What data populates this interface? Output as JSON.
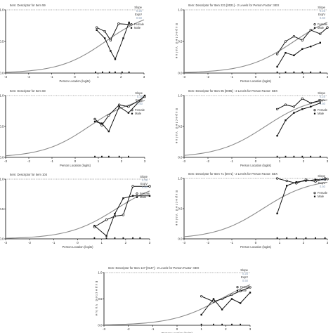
{
  "chart_data": [
    {
      "type": "line",
      "title": "Item: Descriptor for Item 59",
      "xlabel": "Person Location (logits)",
      "ylabel": "",
      "xlim": [
        -3,
        3
      ],
      "ylim": [
        0,
        1
      ],
      "yticks": [
        "0.0",
        "0.5",
        "1.0"
      ],
      "xticks": [
        "-3",
        "-2",
        "-1",
        "0",
        "1",
        "2",
        "3"
      ],
      "stats": {
        "slope_label": "Slope",
        "slope": "0.25",
        "expv_label": "ExpV",
        "expv": "0.50"
      },
      "legend": [
        "Female",
        "Male"
      ],
      "curve": {
        "location": 1.33,
        "scale": 1.0
      },
      "series": [
        {
          "name": "Female",
          "x": [
            0.95,
            1.3,
            1.55,
            1.9,
            2.35
          ],
          "y": [
            0.72,
            0.66,
            0.52,
            0.78,
            0.77
          ]
        },
        {
          "name": "Male",
          "x": [
            0.95,
            1.3,
            1.55,
            1.75,
            2.1,
            2.35
          ],
          "y": [
            0.68,
            0.55,
            0.35,
            0.22,
            0.55,
            0.8
          ]
        }
      ],
      "rug": [
        0.9,
        1.2,
        1.5,
        1.75,
        2.05,
        2.35
      ]
    },
    {
      "type": "line",
      "title": "Item: Descriptor for Item 221 [0021] - 2 Levels for Person Factor: SEX",
      "xlabel": "Person Location (logits)",
      "ylabel": "Expected Value",
      "xlim": [
        -3,
        3
      ],
      "ylim": [
        0,
        1
      ],
      "yticks": [
        "0.0",
        "0.5",
        "1.0"
      ],
      "xticks": [
        "-3",
        "-2",
        "-1",
        "0",
        "1",
        "2",
        "3"
      ],
      "stats": {
        "slope_label": "Slope",
        "slope": "0.25",
        "expv_label": "ExpV",
        "expv": "0.50"
      },
      "legend": [
        "Female",
        "Male"
      ],
      "curve": {
        "location": 1.6,
        "scale": 1.0
      },
      "series": [
        {
          "name": "Female",
          "x": [
            0.9,
            1.25,
            1.6,
            1.95,
            2.3,
            2.7,
            3.0
          ],
          "y": [
            0.3,
            0.5,
            0.58,
            0.52,
            0.68,
            0.62,
            0.72
          ]
        },
        {
          "name": "Male",
          "x": [
            0.9,
            1.25,
            1.6,
            1.95,
            2.3,
            2.7
          ],
          "y": [
            0.1,
            0.32,
            0.28,
            0.38,
            0.42,
            0.48
          ]
        }
      ],
      "rug": [
        0.9,
        1.25,
        1.6,
        1.95,
        2.3,
        2.7
      ]
    },
    {
      "type": "line",
      "title": "Item: Descriptor for Item 83",
      "xlabel": "Person Location (logits)",
      "ylabel": "",
      "xlim": [
        -3,
        3
      ],
      "ylim": [
        0,
        1
      ],
      "yticks": [
        "0.0",
        "0.5",
        "1.0"
      ],
      "xticks": [
        "-3",
        "-2",
        "-1",
        "0",
        "1",
        "2",
        "3"
      ],
      "stats": {
        "slope_label": "Slope",
        "slope": "0.25",
        "expv_label": "ExpV",
        "expv": "0.50"
      },
      "legend": [
        "Female",
        "Male"
      ],
      "curve": {
        "location": 0.6,
        "scale": 1.0
      },
      "series": [
        {
          "name": "Female",
          "x": [
            0.85,
            1.15,
            1.45,
            1.9,
            2.3,
            3.0
          ],
          "y": [
            0.62,
            0.52,
            0.68,
            0.85,
            0.82,
            0.98
          ]
        },
        {
          "name": "Male",
          "x": [
            0.85,
            1.15,
            1.45,
            1.9,
            2.3,
            3.0
          ],
          "y": [
            0.58,
            0.55,
            0.42,
            0.82,
            0.72,
            1.0
          ]
        }
      ],
      "rug": [
        0.85,
        1.15,
        1.45,
        1.9,
        2.3
      ]
    },
    {
      "type": "line",
      "title": "Item: Descriptor for Item 95 [0095] - 2 Levels for Person Factor: SEX",
      "xlabel": "Person Location (logits)",
      "ylabel": "Expected Value",
      "xlim": [
        -3,
        3
      ],
      "ylim": [
        0,
        1
      ],
      "yticks": [
        "0.0",
        "0.5",
        "1.0"
      ],
      "xticks": [
        "-3",
        "-2",
        "-1",
        "0",
        "1",
        "2",
        "3"
      ],
      "stats": {
        "slope_label": "Slope",
        "slope": "0.25",
        "expv_label": "ExpV",
        "expv": "0.50"
      },
      "legend": [
        "Female",
        "Male"
      ],
      "curve": {
        "location": 0.4,
        "scale": 1.0
      },
      "series": [
        {
          "name": "Female",
          "x": [
            0.9,
            1.25,
            1.6,
            1.95,
            2.3,
            2.7
          ],
          "y": [
            0.78,
            0.85,
            0.82,
            0.95,
            0.88,
            0.92
          ]
        },
        {
          "name": "Male",
          "x": [
            0.9,
            1.25,
            1.6,
            1.95,
            2.3,
            2.7
          ],
          "y": [
            0.35,
            0.6,
            0.72,
            0.78,
            0.82,
            0.88
          ]
        }
      ],
      "rug": [
        0.9,
        1.25,
        1.6,
        1.95,
        2.3,
        2.7
      ]
    },
    {
      "type": "line",
      "title": "Item: Descriptor for Item 104",
      "xlabel": "Person Location (logits)",
      "ylabel": "",
      "xlim": [
        -3,
        3
      ],
      "ylim": [
        0,
        1
      ],
      "yticks": [
        "0.0",
        "0.5",
        "1.0"
      ],
      "xticks": [
        "-3",
        "-2",
        "-1",
        "0",
        "1",
        "2",
        "3"
      ],
      "stats": {
        "slope_label": "Slope",
        "slope": "0.25",
        "expv_label": "ExpV",
        "expv": "0.50"
      },
      "legend": [
        "Female",
        "Male"
      ],
      "curve": {
        "location": 1.6,
        "scale": 1.0
      },
      "series": [
        {
          "name": "Female",
          "x": [
            0.7,
            1.2,
            1.55,
            1.9,
            2.3,
            3.0
          ],
          "y": [
            0.2,
            0.32,
            0.38,
            0.4,
            0.88,
            0.88
          ]
        },
        {
          "name": "Male",
          "x": [
            0.7,
            1.2,
            1.55,
            1.9,
            2.3,
            3.0
          ],
          "y": [
            0.22,
            0.05,
            0.42,
            0.68,
            0.72,
            0.72
          ]
        }
      ],
      "rug": [
        0.7,
        1.2,
        1.55,
        1.9,
        2.3,
        2.6
      ]
    },
    {
      "type": "line",
      "title": "Item: Descriptor for Item 71 [0071] - 2 Levels for Person Factor: SEX",
      "xlabel": "Person Location (logits)",
      "ylabel": "Expected Value",
      "xlim": [
        -3,
        3
      ],
      "ylim": [
        0,
        1
      ],
      "yticks": [
        "0.0",
        "0.5",
        "1.0"
      ],
      "xticks": [
        "-3",
        "-2",
        "-1",
        "0",
        "1",
        "2",
        "3"
      ],
      "stats": {
        "slope_label": "Slope",
        "slope": "0.25",
        "expv_label": "ExpV",
        "expv": "0.50"
      },
      "legend": [
        "Female",
        "Male"
      ],
      "curve": {
        "location": 0.3,
        "scale": 1.0
      },
      "series": [
        {
          "name": "Female",
          "x": [
            0.9,
            1.3,
            1.7,
            2.1,
            2.5,
            2.9,
            3.0
          ],
          "y": [
            1.0,
            0.96,
            0.92,
            0.98,
            0.95,
            1.0,
            0.99
          ]
        },
        {
          "name": "Male",
          "x": [
            0.9,
            1.3,
            1.7,
            2.1,
            2.5,
            2.9
          ],
          "y": [
            0.42,
            0.88,
            0.94,
            0.96,
            0.98,
            0.98
          ]
        }
      ],
      "rug": [
        0.9,
        1.3,
        1.7,
        2.1,
        2.5,
        2.9
      ]
    },
    {
      "type": "line",
      "title": "Item: Descriptor for Item 147 [0147] - 2 Levels for Person Factor: SEX",
      "xlabel": "Person Location (logits)",
      "ylabel": "Expected Value",
      "xlim": [
        -3,
        3
      ],
      "ylim": [
        0,
        1
      ],
      "yticks": [
        "0.0",
        "0.5",
        "1.0"
      ],
      "xticks": [
        "-3",
        "-2",
        "-1",
        "0",
        "1",
        "2",
        "3"
      ],
      "stats": {
        "slope_label": "Slope",
        "slope": "0.25",
        "expv_label": "ExpV",
        "expv": "0.50"
      },
      "legend": [
        "Female",
        "Male"
      ],
      "curve": {
        "location": 1.8,
        "scale": 1.0
      },
      "series": [
        {
          "name": "Female",
          "x": [
            1.0,
            1.5,
            1.85,
            2.25,
            2.6,
            3.0
          ],
          "y": [
            0.55,
            0.45,
            0.5,
            0.58,
            0.65,
            0.72
          ]
        },
        {
          "name": "Male",
          "x": [
            1.0,
            1.5,
            1.85,
            2.25,
            2.6,
            3.0
          ],
          "y": [
            0.2,
            0.5,
            0.3,
            0.5,
            0.42,
            0.62
          ]
        }
      ],
      "rug": [
        1.0,
        1.5,
        1.85,
        2.25,
        2.6
      ]
    }
  ]
}
